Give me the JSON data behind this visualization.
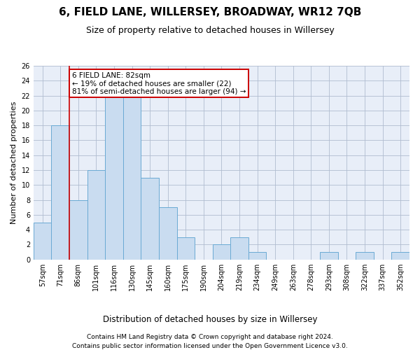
{
  "title": "6, FIELD LANE, WILLERSEY, BROADWAY, WR12 7QB",
  "subtitle": "Size of property relative to detached houses in Willersey",
  "xlabel": "Distribution of detached houses by size in Willersey",
  "ylabel": "Number of detached properties",
  "bar_labels": [
    "57sqm",
    "71sqm",
    "86sqm",
    "101sqm",
    "116sqm",
    "130sqm",
    "145sqm",
    "160sqm",
    "175sqm",
    "190sqm",
    "204sqm",
    "219sqm",
    "234sqm",
    "249sqm",
    "263sqm",
    "278sqm",
    "293sqm",
    "308sqm",
    "322sqm",
    "337sqm",
    "352sqm"
  ],
  "bar_values": [
    5,
    18,
    8,
    12,
    22,
    22,
    11,
    7,
    3,
    0,
    2,
    3,
    1,
    0,
    0,
    0,
    1,
    0,
    1,
    0,
    1
  ],
  "bar_color": "#c9dcf0",
  "bar_edge_color": "#6aaad4",
  "grid_color": "#b0bcd0",
  "background_color": "#e8eef8",
  "annotation_box_text": "6 FIELD LANE: 82sqm\n← 19% of detached houses are smaller (22)\n81% of semi-detached houses are larger (94) →",
  "annotation_box_color": "white",
  "annotation_box_edge_color": "#cc0000",
  "vline_x_index": 1.5,
  "vline_color": "#cc0000",
  "ylim": [
    0,
    26
  ],
  "yticks": [
    0,
    2,
    4,
    6,
    8,
    10,
    12,
    14,
    16,
    18,
    20,
    22,
    24,
    26
  ],
  "footer_line1": "Contains HM Land Registry data © Crown copyright and database right 2024.",
  "footer_line2": "Contains public sector information licensed under the Open Government Licence v3.0.",
  "title_fontsize": 11,
  "subtitle_fontsize": 9,
  "annotation_fontsize": 7.5,
  "ylabel_fontsize": 8,
  "xlabel_fontsize": 8.5,
  "tick_fontsize": 7,
  "footer_fontsize": 6.5
}
